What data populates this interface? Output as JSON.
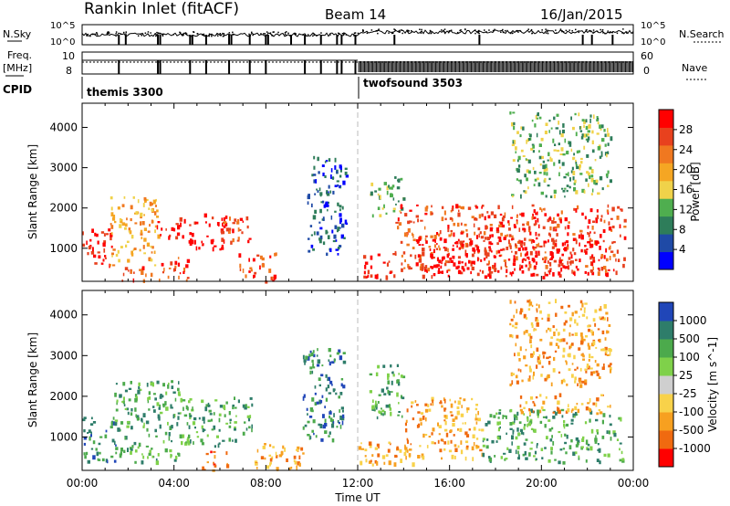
{
  "header": {
    "station": "Rankin Inlet (fitACF)",
    "beam": "Beam 14",
    "date": "16/Jan/2015"
  },
  "top_panels": {
    "nsky_label": "N.Sky",
    "nsearch_label": "N.Search",
    "freq_label_line1": "Freq.",
    "freq_label_line2": "[MHz]",
    "nave_label": "Nave",
    "cpid_label": "CPID",
    "noise_ticks_left": [
      "10^5",
      "10^0"
    ],
    "noise_ticks_right": [
      "10^5",
      "10^0"
    ],
    "freq_ticks": [
      "10",
      "8"
    ],
    "nave_ticks": [
      "60",
      "0"
    ],
    "cpid_modes": [
      {
        "name": "themis 3300",
        "start_h": 0,
        "end_h": 12.1
      },
      {
        "name": "twofsound 3503",
        "start_h": 12.1,
        "end_h": 24
      }
    ]
  },
  "colors": {
    "power": [
      "#0000ff",
      "#1f4aa6",
      "#2e7d5a",
      "#4fae4f",
      "#f0d24a",
      "#f5a623",
      "#f07820",
      "#e8411e",
      "#ff0000"
    ],
    "velocity": [
      "#2046b8",
      "#2e7d6a",
      "#4caa4c",
      "#7fd14a",
      "#cfcfcf",
      "#f8d24a",
      "#f7a020",
      "#f06a10",
      "#ff0000"
    ]
  },
  "chart_data": [
    {
      "type": "heatmap",
      "name": "power_panel",
      "xlabel": "",
      "ylabel": "Slant Range [km]",
      "xlim": [
        0,
        24
      ],
      "ylim": [
        180,
        4600
      ],
      "yticks": [
        1000,
        2000,
        3000,
        4000
      ],
      "colorbar": {
        "label": "Power [dB]",
        "ticks": [
          "4",
          "8",
          "12",
          "16",
          "20",
          "24",
          "28"
        ]
      },
      "regions": [
        {
          "t0": 0.0,
          "t1": 1.3,
          "r0": 500,
          "r1": 1500,
          "level": 8
        },
        {
          "t0": 1.2,
          "t1": 3.3,
          "r0": 600,
          "r1": 2300,
          "level": 5
        },
        {
          "t0": 1.6,
          "t1": 3.0,
          "r0": 200,
          "r1": 600,
          "level": 7
        },
        {
          "t0": 3.2,
          "t1": 4.6,
          "r0": 1300,
          "r1": 1800,
          "level": 8
        },
        {
          "t0": 3.3,
          "t1": 4.6,
          "r0": 200,
          "r1": 800,
          "level": 7
        },
        {
          "t0": 4.6,
          "t1": 6.3,
          "r0": 1000,
          "r1": 1900,
          "level": 8
        },
        {
          "t0": 6.0,
          "t1": 7.4,
          "r0": 1100,
          "r1": 1800,
          "level": 7
        },
        {
          "t0": 6.8,
          "t1": 8.4,
          "r0": 200,
          "r1": 900,
          "level": 7
        },
        {
          "t0": 9.8,
          "t1": 11.5,
          "r0": 800,
          "r1": 3300,
          "level": 1
        },
        {
          "t0": 12.1,
          "t1": 13.6,
          "r0": 300,
          "r1": 900,
          "level": 8
        },
        {
          "t0": 12.5,
          "t1": 14.0,
          "r0": 1800,
          "r1": 2800,
          "level": 3
        },
        {
          "t0": 13.6,
          "t1": 23.6,
          "r0": 400,
          "r1": 2100,
          "level": 7
        },
        {
          "t0": 14.4,
          "t1": 22.5,
          "r0": 300,
          "r1": 1300,
          "level": 8
        },
        {
          "t0": 18.6,
          "t1": 23.0,
          "r0": 2300,
          "r1": 4400,
          "level": 3
        }
      ]
    },
    {
      "type": "heatmap",
      "name": "velocity_panel",
      "xlabel": "Time UT",
      "ylabel": "Slant Range [km]",
      "xlim": [
        0,
        24
      ],
      "ylim": [
        180,
        4600
      ],
      "xticks": [
        "00:00",
        "04:00",
        "08:00",
        "12:00",
        "16:00",
        "20:00",
        "00:00"
      ],
      "yticks": [
        1000,
        2000,
        3000,
        4000
      ],
      "colorbar": {
        "label": "Velocity [m s^-1]",
        "ticks": [
          "1000",
          "500",
          "100",
          "25",
          "-25",
          "-100",
          "-500",
          "-1000"
        ]
      },
      "regions": [
        {
          "t0": 0.0,
          "t1": 1.5,
          "r0": 400,
          "r1": 1500,
          "level": 1
        },
        {
          "t0": 1.4,
          "t1": 4.2,
          "r0": 400,
          "r1": 2400,
          "level": 2
        },
        {
          "t0": 4.2,
          "t1": 7.4,
          "r0": 800,
          "r1": 2000,
          "level": 2
        },
        {
          "t0": 5.2,
          "t1": 6.3,
          "r0": 200,
          "r1": 700,
          "level": 7
        },
        {
          "t0": 7.4,
          "t1": 9.6,
          "r0": 200,
          "r1": 900,
          "level": 6
        },
        {
          "t0": 9.6,
          "t1": 11.4,
          "r0": 900,
          "r1": 3200,
          "level": 1
        },
        {
          "t0": 12.0,
          "t1": 14.4,
          "r0": 300,
          "r1": 900,
          "level": 6
        },
        {
          "t0": 12.4,
          "t1": 14.0,
          "r0": 1500,
          "r1": 2800,
          "level": 2
        },
        {
          "t0": 14.0,
          "t1": 17.4,
          "r0": 500,
          "r1": 2000,
          "level": 6
        },
        {
          "t0": 17.4,
          "t1": 23.5,
          "r0": 400,
          "r1": 1700,
          "level": 2
        },
        {
          "t0": 19.0,
          "t1": 23.0,
          "r0": 1600,
          "r1": 2100,
          "level": 6
        },
        {
          "t0": 18.6,
          "t1": 23.0,
          "r0": 2300,
          "r1": 4400,
          "level": 6
        }
      ]
    }
  ]
}
